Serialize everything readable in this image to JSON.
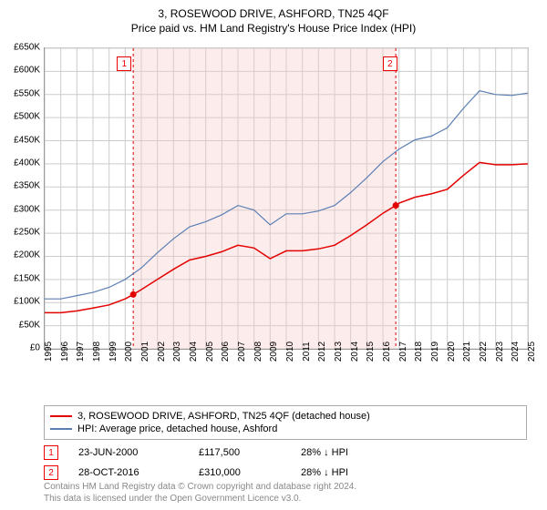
{
  "title": "3, ROSEWOOD DRIVE, ASHFORD, TN25 4QF",
  "subtitle": "Price paid vs. HM Land Registry's House Price Index (HPI)",
  "chart": {
    "type": "line",
    "background_color": "#ffffff",
    "grid_color": "#cccccc",
    "axis_color": "#666666",
    "ylim": [
      0,
      650000
    ],
    "ytick_step": 50000,
    "ytick_labels": [
      "£0",
      "£50K",
      "£100K",
      "£150K",
      "£200K",
      "£250K",
      "£300K",
      "£350K",
      "£400K",
      "£450K",
      "£500K",
      "£550K",
      "£600K",
      "£650K"
    ],
    "xlim": [
      1995,
      2025
    ],
    "xtick_step": 1,
    "xtick_labels": [
      "1995",
      "1996",
      "1997",
      "1998",
      "1999",
      "2000",
      "2001",
      "2002",
      "2003",
      "2004",
      "2005",
      "2006",
      "2007",
      "2008",
      "2009",
      "2010",
      "2011",
      "2012",
      "2013",
      "2014",
      "2015",
      "2016",
      "2017",
      "2018",
      "2019",
      "2020",
      "2021",
      "2022",
      "2023",
      "2024",
      "2025"
    ],
    "series": [
      {
        "name": "3, ROSEWOOD DRIVE, ASHFORD, TN25 4QF (detached house)",
        "color": "#e30000",
        "line_width": 1.5,
        "data": [
          [
            1995,
            78000
          ],
          [
            1996,
            78000
          ],
          [
            1997,
            82000
          ],
          [
            1998,
            88000
          ],
          [
            1999,
            95000
          ],
          [
            2000,
            108000
          ],
          [
            2000.5,
            117500
          ],
          [
            2001,
            128000
          ],
          [
            2002,
            150000
          ],
          [
            2003,
            172000
          ],
          [
            2004,
            192000
          ],
          [
            2005,
            200000
          ],
          [
            2006,
            210000
          ],
          [
            2007,
            224000
          ],
          [
            2008,
            218000
          ],
          [
            2009,
            195000
          ],
          [
            2010,
            212000
          ],
          [
            2011,
            212000
          ],
          [
            2012,
            216000
          ],
          [
            2013,
            224000
          ],
          [
            2014,
            245000
          ],
          [
            2015,
            268000
          ],
          [
            2016,
            293000
          ],
          [
            2016.8,
            310000
          ],
          [
            2017,
            315000
          ],
          [
            2018,
            328000
          ],
          [
            2019,
            335000
          ],
          [
            2020,
            345000
          ],
          [
            2021,
            375000
          ],
          [
            2022,
            403000
          ],
          [
            2023,
            398000
          ],
          [
            2024,
            398000
          ],
          [
            2025,
            400000
          ]
        ]
      },
      {
        "name": "HPI: Average price, detached house, Ashford",
        "color": "#5b7fb5",
        "line_width": 1.2,
        "data": [
          [
            1995,
            108000
          ],
          [
            1996,
            108000
          ],
          [
            1997,
            115000
          ],
          [
            1998,
            122000
          ],
          [
            1999,
            133000
          ],
          [
            2000,
            150000
          ],
          [
            2001,
            175000
          ],
          [
            2002,
            208000
          ],
          [
            2003,
            238000
          ],
          [
            2004,
            264000
          ],
          [
            2005,
            275000
          ],
          [
            2006,
            290000
          ],
          [
            2007,
            310000
          ],
          [
            2008,
            300000
          ],
          [
            2009,
            268000
          ],
          [
            2010,
            292000
          ],
          [
            2011,
            292000
          ],
          [
            2012,
            298000
          ],
          [
            2013,
            310000
          ],
          [
            2014,
            338000
          ],
          [
            2015,
            370000
          ],
          [
            2016,
            405000
          ],
          [
            2017,
            432000
          ],
          [
            2018,
            452000
          ],
          [
            2019,
            460000
          ],
          [
            2020,
            478000
          ],
          [
            2021,
            520000
          ],
          [
            2022,
            558000
          ],
          [
            2023,
            550000
          ],
          [
            2024,
            548000
          ],
          [
            2025,
            553000
          ]
        ]
      }
    ],
    "transaction_markers": [
      {
        "n": 1,
        "x": 2000.5,
        "y": 117500,
        "callout_x": 2000.0
      },
      {
        "n": 2,
        "x": 2016.8,
        "y": 310000,
        "callout_x": 2016.5
      }
    ],
    "marker_color": "#e30000",
    "dashed_line_color": "#e30000",
    "shade_color": "#f7c9c9",
    "shade_opacity": 0.35
  },
  "legend": {
    "items": [
      {
        "color": "#e30000",
        "label": "3, ROSEWOOD DRIVE, ASHFORD, TN25 4QF (detached house)"
      },
      {
        "color": "#5b7fb5",
        "label": "HPI: Average price, detached house, Ashford"
      }
    ]
  },
  "transactions": [
    {
      "n": "1",
      "date": "23-JUN-2000",
      "price": "£117,500",
      "pct": "28% ↓ HPI"
    },
    {
      "n": "2",
      "date": "28-OCT-2016",
      "price": "£310,000",
      "pct": "28% ↓ HPI"
    }
  ],
  "attribution": {
    "line1": "Contains HM Land Registry data © Crown copyright and database right 2024.",
    "line2": "This data is licensed under the Open Government Licence v3.0."
  }
}
